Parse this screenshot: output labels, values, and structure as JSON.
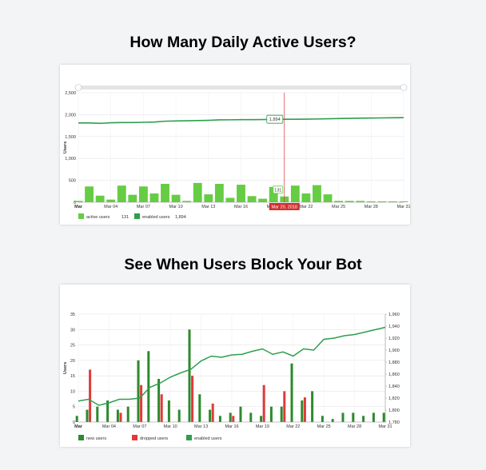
{
  "page": {
    "heading1": "How Many Daily Active Users?",
    "heading2": "See When Users Block Your Bot"
  },
  "colors": {
    "active_bar": "#66cc44",
    "enabled_line": "#2e9e4e",
    "new_bar": "#2d8a2d",
    "dropped_bar": "#e03a3a",
    "cursor": "#d32f2f",
    "grid": "#e6e6e6"
  },
  "chart_data": [
    {
      "type": "bar",
      "ylabel": "Users",
      "ylim": [
        0,
        2500
      ],
      "yticks": [
        "0",
        "500",
        "1,000",
        "1,500",
        "2,000",
        "2,500"
      ],
      "xticks": [
        "Mar",
        "Mar 04",
        "Mar 07",
        "Mar 10",
        "Mar 13",
        "Mar 16",
        "Mar 19",
        "Mar 22",
        "Mar 25",
        "Mar 28",
        "Mar 31"
      ],
      "x": [
        "Mar 01",
        "Mar 02",
        "Mar 03",
        "Mar 04",
        "Mar 05",
        "Mar 06",
        "Mar 07",
        "Mar 08",
        "Mar 09",
        "Mar 10",
        "Mar 11",
        "Mar 12",
        "Mar 13",
        "Mar 14",
        "Mar 15",
        "Mar 16",
        "Mar 17",
        "Mar 18",
        "Mar 19",
        "Mar 20",
        "Mar 21",
        "Mar 22",
        "Mar 23",
        "Mar 24",
        "Mar 25",
        "Mar 26",
        "Mar 27",
        "Mar 28",
        "Mar 29",
        "Mar 30",
        "Mar 31"
      ],
      "series": [
        {
          "name": "active users",
          "type": "bar",
          "values": [
            30,
            360,
            150,
            60,
            380,
            170,
            360,
            200,
            420,
            170,
            30,
            440,
            180,
            420,
            100,
            400,
            140,
            80,
            350,
            131,
            380,
            200,
            390,
            180,
            30,
            30,
            30,
            20,
            20,
            20,
            20
          ]
        },
        {
          "name": "enabled users",
          "type": "line",
          "values": [
            1810,
            1810,
            1800,
            1815,
            1820,
            1820,
            1825,
            1830,
            1850,
            1855,
            1860,
            1865,
            1870,
            1880,
            1882,
            1885,
            1885,
            1888,
            1890,
            1894,
            1894,
            1896,
            1900,
            1905,
            1910,
            1915,
            1920,
            1922,
            1925,
            1928,
            1930
          ]
        }
      ],
      "cursor": {
        "date_label": "Mar 20, 2018",
        "enabled_label": "1,894",
        "active_label": "131"
      },
      "legend": [
        {
          "name": "active users",
          "value": "131"
        },
        {
          "name": "enabled users",
          "value": "1,894"
        }
      ]
    },
    {
      "type": "bar",
      "ylabel": "Users",
      "ylim": [
        0,
        35
      ],
      "y2lim": [
        1780,
        1960
      ],
      "yticks": [
        "0",
        "5",
        "10",
        "15",
        "20",
        "25",
        "30",
        "35"
      ],
      "y2ticks": [
        "1,780",
        "1,800",
        "1,820",
        "1,840",
        "1,860",
        "1,880",
        "1,900",
        "1,920",
        "1,940",
        "1,960"
      ],
      "xticks": [
        "Mar",
        "Mar 04",
        "Mar 07",
        "Mar 10",
        "Mar 13",
        "Mar 16",
        "Mar 19",
        "Mar 22",
        "Mar 25",
        "Mar 28",
        "Mar 31"
      ],
      "x": [
        "Mar 01",
        "Mar 02",
        "Mar 03",
        "Mar 04",
        "Mar 05",
        "Mar 06",
        "Mar 07",
        "Mar 08",
        "Mar 09",
        "Mar 10",
        "Mar 11",
        "Mar 12",
        "Mar 13",
        "Mar 14",
        "Mar 15",
        "Mar 16",
        "Mar 17",
        "Mar 18",
        "Mar 19",
        "Mar 20",
        "Mar 21",
        "Mar 22",
        "Mar 23",
        "Mar 24",
        "Mar 25",
        "Mar 26",
        "Mar 27",
        "Mar 28",
        "Mar 29",
        "Mar 30",
        "Mar 31"
      ],
      "series": [
        {
          "name": "new users",
          "type": "bar",
          "values": [
            2,
            4,
            5,
            7,
            4,
            5,
            20,
            23,
            14,
            7,
            4,
            30,
            9,
            4,
            2,
            3,
            5,
            3,
            2,
            5,
            5,
            19,
            7,
            10,
            2,
            1,
            3,
            3,
            2,
            3,
            3
          ]
        },
        {
          "name": "dropped users",
          "type": "bar",
          "values": [
            0,
            17,
            0,
            0,
            3,
            0,
            12,
            0,
            9,
            0,
            0,
            15,
            0,
            6,
            0,
            2,
            0,
            0,
            12,
            0,
            10,
            0,
            8,
            0,
            0,
            0,
            0,
            0,
            0,
            0,
            0
          ]
        },
        {
          "name": "enabled users",
          "type": "line",
          "values": [
            1815,
            1818,
            1808,
            1812,
            1818,
            1818,
            1820,
            1838,
            1845,
            1855,
            1862,
            1868,
            1882,
            1890,
            1888,
            1892,
            1893,
            1898,
            1902,
            1893,
            1897,
            1890,
            1902,
            1900,
            1918,
            1920,
            1924,
            1926,
            1930,
            1934,
            1938
          ]
        }
      ],
      "legend": [
        {
          "name": "new users"
        },
        {
          "name": "dropped users"
        },
        {
          "name": "enabled users"
        }
      ]
    }
  ]
}
